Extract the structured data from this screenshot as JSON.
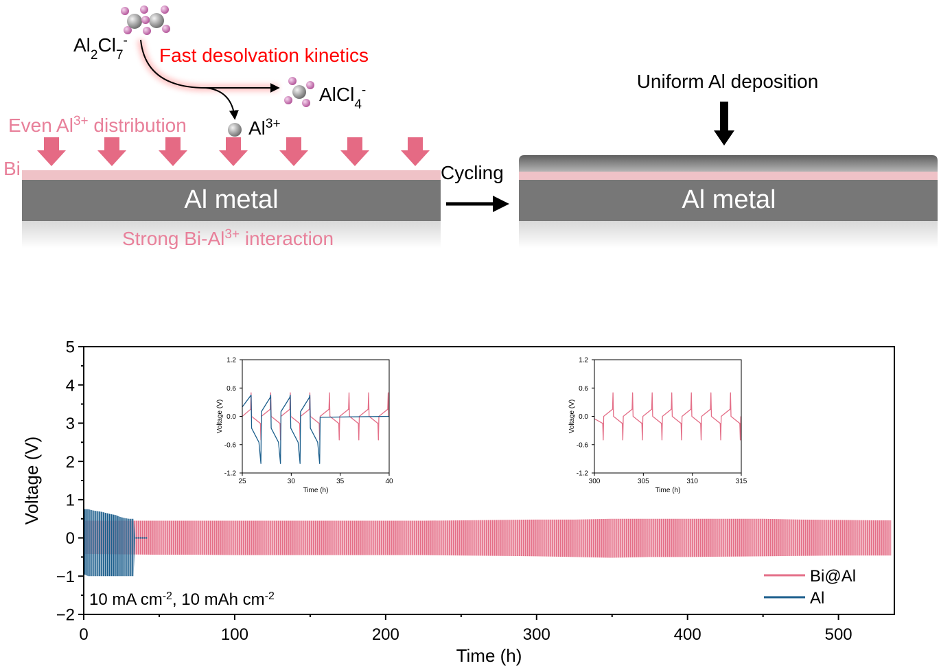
{
  "diagram": {
    "anion": [
      "Al",
      "2",
      "Cl",
      "7",
      "-"
    ],
    "desolvation": "Fast desolvation kinetics",
    "product": [
      "AlCl",
      "4",
      "-"
    ],
    "cation": [
      "Al",
      "3+"
    ],
    "distribution": [
      "Even Al",
      "3+",
      " distribution"
    ],
    "coating": "Bi",
    "substrate_left": "Al metal",
    "interaction": [
      "Strong Bi-Al",
      "3+",
      " interaction"
    ],
    "process": "Cycling",
    "substrate_right": "Al metal",
    "result": "Uniform Al deposition"
  },
  "chart_data": [
    {
      "type": "range_area",
      "x_label": "Time (h)",
      "y_label": "Voltage (V)",
      "xlim": [
        0,
        537
      ],
      "xticks": [
        0,
        100,
        200,
        300,
        400,
        500
      ],
      "ylim": [
        -2,
        5
      ],
      "yticks": [
        {
          "value": -2,
          "label": "−2"
        },
        {
          "value": -1,
          "label": "−1"
        },
        0,
        1,
        2,
        3,
        4,
        5
      ],
      "legend": "lower right",
      "annotation": [
        "10 mA cm",
        "-2",
        ", 10 mAh cm",
        "-2"
      ],
      "series": [
        {
          "name": "Bi@Al",
          "color": "#e46f88",
          "x": [
            0,
            25,
            50,
            75,
            100,
            125,
            150,
            175,
            200,
            225,
            250,
            275,
            300,
            325,
            350,
            375,
            400,
            425,
            450,
            475,
            500,
            525,
            535
          ],
          "high": [
            0.45,
            0.45,
            0.45,
            0.45,
            0.45,
            0.45,
            0.45,
            0.45,
            0.45,
            0.45,
            0.46,
            0.47,
            0.48,
            0.48,
            0.5,
            0.5,
            0.5,
            0.5,
            0.5,
            0.48,
            0.47,
            0.46,
            0.46
          ],
          "low": [
            -0.42,
            -0.43,
            -0.44,
            -0.44,
            -0.45,
            -0.45,
            -0.45,
            -0.45,
            -0.45,
            -0.45,
            -0.46,
            -0.47,
            -0.48,
            -0.5,
            -0.52,
            -0.5,
            -0.5,
            -0.49,
            -0.48,
            -0.47,
            -0.46,
            -0.46,
            -0.46
          ]
        },
        {
          "name": "Al",
          "color": "#1b5e8c",
          "x": [
            0,
            3,
            6,
            9,
            12,
            15,
            18,
            21,
            24,
            27,
            30,
            33,
            34,
            42
          ],
          "high": [
            0.75,
            0.75,
            0.72,
            0.7,
            0.68,
            0.65,
            0.62,
            0.6,
            0.55,
            0.52,
            0.5,
            0.5,
            0.02,
            0.02
          ],
          "low": [
            -0.95,
            -1.0,
            -1.0,
            -1.0,
            -1.0,
            -1.0,
            -1.0,
            -1.0,
            -1.0,
            -1.0,
            -1.0,
            -1.0,
            -0.02,
            -0.02
          ]
        }
      ]
    },
    {
      "type": "line",
      "x_label": "Time (h)",
      "y_label": "Voltage (V)",
      "xlim": [
        25,
        40
      ],
      "xticks": [
        25,
        30,
        35,
        40
      ],
      "ylim": [
        -1.2,
        1.2
      ],
      "yticks": [
        -1.2,
        -0.6,
        {
          "value": 0,
          "label": "0.0"
        },
        0.6,
        1.2
      ],
      "series": [
        {
          "name": "Bi@Al",
          "color": "#e46f88",
          "x": [
            25,
            25.85,
            25.9,
            25.95,
            26.85,
            26.9,
            26.95,
            27.85,
            27.9,
            27.95,
            28.85,
            28.9,
            28.95,
            29.85,
            29.9,
            29.95,
            30.85,
            30.9,
            30.95,
            31.85,
            31.9,
            31.95,
            32.85,
            32.9,
            32.95,
            33.85,
            33.9,
            33.95,
            34.85,
            34.9,
            34.95,
            35.85,
            35.9,
            35.95,
            36.85,
            36.9,
            36.95,
            37.85,
            37.9,
            37.95,
            38.85,
            38.9,
            38.95,
            39.85,
            39.9,
            39.95
          ],
          "values": [
            0.0,
            0.15,
            0.5,
            0.0,
            -0.15,
            -0.5,
            0.0,
            0.15,
            0.5,
            0.0,
            -0.15,
            -0.5,
            0.0,
            0.15,
            0.5,
            0.0,
            -0.15,
            -0.5,
            0.0,
            0.15,
            0.5,
            0.0,
            -0.15,
            -0.5,
            0.0,
            0.15,
            0.5,
            0.0,
            -0.15,
            -0.5,
            0.0,
            0.15,
            0.5,
            0.0,
            -0.15,
            -0.5,
            0.0,
            0.15,
            0.5,
            0.0,
            -0.15,
            -0.5,
            0.0,
            0.15,
            0.5,
            0.0
          ]
        },
        {
          "name": "Al",
          "color": "#1b5e8c",
          "x": [
            25,
            25.9,
            25.95,
            26.7,
            26.9,
            26.95,
            27.85,
            27.9,
            27.95,
            28.7,
            28.9,
            28.95,
            29.85,
            29.9,
            29.95,
            30.7,
            30.9,
            30.95,
            31.85,
            31.9,
            31.95,
            32.7,
            32.9,
            32.95,
            40
          ],
          "values": [
            0.2,
            0.45,
            -0.25,
            -0.55,
            -1.0,
            0.1,
            0.4,
            0.45,
            -0.25,
            -0.55,
            -1.0,
            0.1,
            0.4,
            0.45,
            -0.25,
            -0.55,
            -1.0,
            0.1,
            0.4,
            0.45,
            -0.25,
            -0.55,
            -1.0,
            -0.02,
            0.0
          ]
        }
      ]
    },
    {
      "type": "line",
      "x_label": "Time (h)",
      "y_label": "Voltage (V)",
      "xlim": [
        300,
        315
      ],
      "xticks": [
        300,
        305,
        310,
        315
      ],
      "ylim": [
        -1.2,
        1.2
      ],
      "yticks": [
        -1.2,
        -0.6,
        {
          "value": 0,
          "label": "0.0"
        },
        0.6,
        1.2
      ],
      "series": [
        {
          "name": "Bi@Al",
          "color": "#e46f88",
          "x": [
            300,
            300.85,
            300.9,
            300.95,
            301.85,
            301.9,
            301.95,
            302.85,
            302.9,
            302.95,
            303.85,
            303.9,
            303.95,
            304.85,
            304.9,
            304.95,
            305.85,
            305.9,
            305.95,
            306.85,
            306.9,
            306.95,
            307.85,
            307.9,
            307.95,
            308.85,
            308.9,
            308.95,
            309.85,
            309.9,
            309.95,
            310.85,
            310.9,
            310.95,
            311.85,
            311.9,
            311.95,
            312.85,
            312.9,
            312.95,
            313.85,
            313.9,
            313.95,
            314.85,
            314.9,
            314.95
          ],
          "values": [
            -0.05,
            -0.15,
            -0.5,
            0.0,
            0.15,
            0.5,
            0.0,
            -0.15,
            -0.5,
            0.0,
            0.15,
            0.5,
            0.0,
            -0.15,
            -0.5,
            0.0,
            0.15,
            0.5,
            0.0,
            -0.15,
            -0.5,
            0.0,
            0.15,
            0.5,
            0.0,
            -0.15,
            -0.5,
            0.0,
            0.15,
            0.5,
            0.0,
            -0.15,
            -0.5,
            0.0,
            0.15,
            0.5,
            0.0,
            -0.15,
            -0.5,
            0.0,
            0.15,
            0.5,
            0.0,
            -0.15,
            -0.5,
            0.0
          ]
        }
      ]
    }
  ]
}
